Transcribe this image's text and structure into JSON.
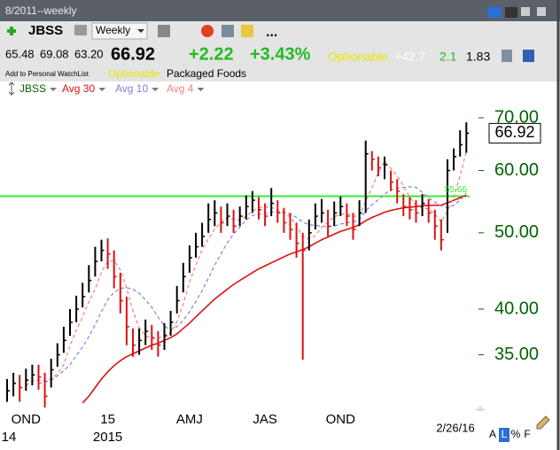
{
  "header": {
    "period": "8/2011--weekly",
    "symbol": "JBSS",
    "interval": "Weekly",
    "more": "...",
    "quote": [
      "65.48",
      "69.08",
      "63.20"
    ],
    "last": "66.92",
    "change": "+2.22",
    "change_pct": "+3.43%",
    "optionable": "Optionable",
    "extra": [
      "+42.7",
      "2.1",
      "1.83"
    ],
    "watchlist": "Add to Personal WatchList",
    "tag": "Optionable",
    "industry": "Packaged Foods"
  },
  "chart_data": {
    "type": "ohlc",
    "log": true,
    "ylim": [
      30,
      74.3
    ],
    "yticks": [
      {
        "value": 35,
        "label": "35.00"
      },
      {
        "value": 40,
        "label": "40.00"
      },
      {
        "value": 50,
        "label": "50.00"
      },
      {
        "value": 60,
        "label": "60.00"
      },
      {
        "value": 70,
        "label": "70.00"
      }
    ],
    "categories": [
      null,
      null,
      null,
      "OND",
      null,
      null,
      null,
      null,
      null,
      null,
      null,
      null,
      null,
      null,
      null,
      null,
      "15",
      null,
      null,
      null,
      null,
      null,
      null,
      null,
      null,
      null,
      null,
      null,
      null,
      "AMJ",
      null,
      null,
      null,
      null,
      null,
      null,
      null,
      null,
      null,
      null,
      null,
      "JAS",
      null,
      null,
      null,
      null,
      null,
      null,
      null,
      null,
      null,
      null,
      null,
      "OND",
      null,
      null,
      null,
      null,
      null,
      null,
      null,
      null,
      null,
      null,
      null,
      null,
      null,
      null,
      null,
      null,
      null,
      null,
      null,
      null
    ],
    "year_labels": [
      "14",
      null,
      null,
      null,
      null,
      null,
      null,
      null,
      null,
      null,
      null,
      null,
      null,
      null,
      null,
      null,
      "2015",
      null,
      null,
      null,
      null,
      null,
      null,
      null,
      null,
      null,
      null,
      null,
      null,
      null,
      null,
      null,
      null,
      null,
      null,
      null,
      null,
      null,
      null,
      null,
      null,
      null,
      null,
      null,
      null,
      null,
      null,
      null,
      null,
      null,
      null,
      null,
      null,
      null,
      null,
      null,
      null,
      null,
      null,
      null,
      null,
      null,
      null,
      null,
      null,
      null,
      null,
      null,
      null,
      null,
      null,
      null,
      null,
      null
    ],
    "last_date": "2/26/16",
    "last": 66.92,
    "hline": {
      "value": 55.66,
      "color": "#33ee33"
    },
    "series": [
      {
        "name": "JBSS",
        "color": "#006400",
        "up_color": "#000000",
        "down_color": "#dd1111",
        "high": [
          32.6,
          33.2,
          33.0,
          33.6,
          34.0,
          34.0,
          33.2,
          34.6,
          36.2,
          38.0,
          40.0,
          41.6,
          43.2,
          45.5,
          48.0,
          49.0,
          49.2,
          47.5,
          44.5,
          41.5,
          37.8,
          37.8,
          38.8,
          38.2,
          37.5,
          38.4,
          39.8,
          42.8,
          45.8,
          48.2,
          50.0,
          51.5,
          54.5,
          55.0,
          54.0,
          54.5,
          53.5,
          54.0,
          55.8,
          56.5,
          55.5,
          54.5,
          57.0,
          55.0,
          53.8,
          53.0,
          51.5,
          50.0,
          52.0,
          54.5,
          55.2,
          53.5,
          54.8,
          55.6,
          54.5,
          53.0,
          55.0,
          65.5,
          63.5,
          62.5,
          62.5,
          60.0,
          58.5,
          56.0,
          55.5,
          55.0,
          56.0,
          55.2,
          53.5,
          52.0,
          62.0,
          64.0,
          67.5,
          69.08
        ],
        "low": [
          30.5,
          31.0,
          30.5,
          31.5,
          32.0,
          31.6,
          29.8,
          31.8,
          33.8,
          35.2,
          37.0,
          38.5,
          40.2,
          42.0,
          44.0,
          46.0,
          45.0,
          42.5,
          39.5,
          36.0,
          34.8,
          35.0,
          36.0,
          35.5,
          34.8,
          35.5,
          37.0,
          39.5,
          42.0,
          44.5,
          46.5,
          48.0,
          50.0,
          51.0,
          50.0,
          51.0,
          50.0,
          51.0,
          52.0,
          53.0,
          52.0,
          51.0,
          52.5,
          51.5,
          50.0,
          49.0,
          46.5,
          34.5,
          47.5,
          50.5,
          51.5,
          49.5,
          51.0,
          52.5,
          51.0,
          49.0,
          51.0,
          53.0,
          60.0,
          59.0,
          58.5,
          56.5,
          54.5,
          52.5,
          52.0,
          51.5,
          52.5,
          51.5,
          49.0,
          47.5,
          50.0,
          60.0,
          62.5,
          63.2
        ],
        "close": [
          31.5,
          32.2,
          31.8,
          32.5,
          33.0,
          32.8,
          31.0,
          33.5,
          35.0,
          36.5,
          38.5,
          40.0,
          41.5,
          43.5,
          46.0,
          47.5,
          47.0,
          44.0,
          41.0,
          38.0,
          36.0,
          36.5,
          37.5,
          36.8,
          36.0,
          37.0,
          38.5,
          41.0,
          44.0,
          46.5,
          48.0,
          49.5,
          52.0,
          53.0,
          51.5,
          52.5,
          51.0,
          52.5,
          54.0,
          55.0,
          53.5,
          52.5,
          54.5,
          53.0,
          51.5,
          50.5,
          48.5,
          47.5,
          50.0,
          52.5,
          53.0,
          51.0,
          53.0,
          54.0,
          52.5,
          50.5,
          53.0,
          63.0,
          62.0,
          60.5,
          61.0,
          58.0,
          56.5,
          54.0,
          53.5,
          53.0,
          54.5,
          53.0,
          51.0,
          49.0,
          60.0,
          62.5,
          64.7,
          66.92
        ]
      },
      {
        "name": "Avg 30",
        "color": "#dd1111",
        "dash": false,
        "values": [
          null,
          null,
          null,
          null,
          null,
          null,
          null,
          null,
          null,
          null,
          null,
          null,
          30.4,
          31.0,
          31.8,
          32.6,
          33.3,
          33.9,
          34.4,
          34.8,
          35.1,
          35.4,
          35.7,
          36.0,
          36.2,
          36.5,
          36.8,
          37.2,
          37.8,
          38.4,
          39.1,
          39.8,
          40.5,
          41.2,
          41.8,
          42.4,
          43.0,
          43.5,
          44.0,
          44.5,
          45.0,
          45.4,
          45.8,
          46.2,
          46.6,
          47.0,
          47.3,
          47.6,
          48.0,
          48.5,
          49.0,
          49.4,
          49.8,
          50.2,
          50.5,
          50.8,
          51.2,
          51.8,
          52.3,
          52.7,
          53.1,
          53.4,
          53.6,
          53.8,
          53.9,
          54.0,
          54.1,
          54.2,
          54.2,
          54.2,
          54.6,
          55.0,
          55.4,
          55.8
        ]
      },
      {
        "name": "Avg 10",
        "color": "#8080e0",
        "dash": true,
        "values": [
          null,
          null,
          null,
          null,
          null,
          32.2,
          32.3,
          32.5,
          32.9,
          33.4,
          34.0,
          34.9,
          35.8,
          36.9,
          38.2,
          39.7,
          41.1,
          42.0,
          42.5,
          42.6,
          42.4,
          41.9,
          41.1,
          40.2,
          39.1,
          38.1,
          37.6,
          38.0,
          38.7,
          39.7,
          40.9,
          42.2,
          43.8,
          45.5,
          47.0,
          48.6,
          49.8,
          50.9,
          51.9,
          52.6,
          52.8,
          52.9,
          53.1,
          53.2,
          53.1,
          52.8,
          52.3,
          51.6,
          51.2,
          51.1,
          51.0,
          50.9,
          51.0,
          51.3,
          51.5,
          51.6,
          52.0,
          53.3,
          54.3,
          55.1,
          56.0,
          56.7,
          57.0,
          57.1,
          57.2,
          57.1,
          56.3,
          55.4,
          54.7,
          54.1,
          53.8,
          54.2,
          55.0,
          56.2
        ]
      },
      {
        "name": "Avg 4",
        "color": "#f08080",
        "dash": true,
        "values": [
          null,
          null,
          null,
          32.0,
          32.4,
          32.5,
          32.4,
          32.6,
          33.1,
          34.0,
          35.9,
          37.6,
          39.1,
          40.9,
          42.4,
          44.6,
          46.0,
          46.1,
          44.9,
          42.5,
          39.8,
          37.9,
          37.0,
          36.7,
          36.7,
          37.1,
          37.3,
          38.6,
          40.6,
          43.3,
          45.5,
          47.6,
          49.1,
          50.6,
          51.5,
          52.3,
          52.0,
          51.9,
          52.5,
          53.3,
          53.8,
          53.9,
          53.9,
          53.4,
          53.0,
          52.4,
          51.0,
          49.5,
          49.1,
          49.6,
          50.8,
          51.6,
          52.4,
          52.8,
          52.9,
          52.5,
          52.5,
          54.8,
          57.1,
          59.6,
          61.6,
          60.4,
          59.0,
          57.4,
          55.5,
          54.2,
          53.8,
          53.6,
          52.9,
          51.6,
          53.3,
          55.6,
          59.0,
          63.5
        ]
      }
    ],
    "footer_buttons": [
      "A",
      "L",
      "%",
      "F"
    ]
  }
}
